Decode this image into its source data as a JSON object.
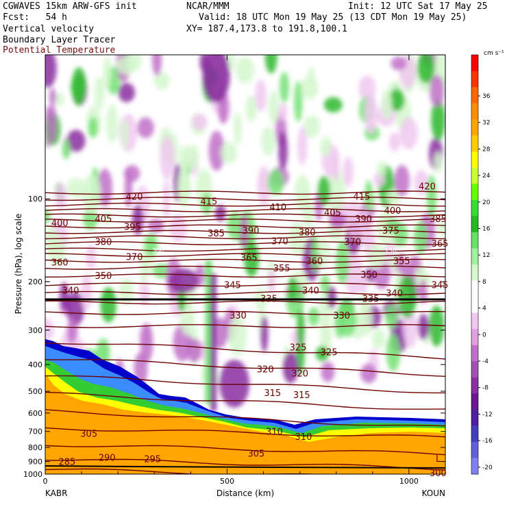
{
  "header": {
    "left_line1": "CGWAVES 15km ARW-GFS init",
    "left_line2": "Fcst:   54 h",
    "left_line3": "Vertical velocity",
    "left_line4": "Boundary Layer Tracer",
    "left_line5": "Potential Temperature",
    "center_line1": "NCAR/MMM",
    "right_line1": "Init: 12 UTC Sat 17 May 25",
    "right_line2": "Valid: 18 UTC Mon 19 May 25 (13 CDT Mon 19 May 25)",
    "right_line3": "XY= 187.4,173.8 to 191.8,100.1"
  },
  "colors": {
    "theta_contour": "#6b0000",
    "ascent_light": "#d4f7cc",
    "ascent_mid": "#74e074",
    "ascent_strong": "#2eb82e",
    "descent_light": "#f0c8f0",
    "descent_mid": "#c070c8",
    "descent_strong": "#8a2ea0",
    "terrain": "#000000"
  },
  "chart_data": {
    "type": "heatmap",
    "xlabel": "Distance (km)",
    "ylabel": "Pressure (hPa), log scale",
    "x_ticks": [
      "0",
      "500",
      "1000"
    ],
    "y_ticks": [
      "100",
      "200",
      "300",
      "400",
      "500",
      "600",
      "700",
      "800",
      "900",
      "1000"
    ],
    "x_endpoints": {
      "left": "KABR",
      "right": "KOUN"
    },
    "xlim": [
      0,
      1100
    ],
    "ylim": [
      1000,
      30
    ],
    "colorbar": {
      "units": "cm s⁻¹",
      "labels": [
        "36",
        "32",
        "28",
        "24",
        "20",
        "16",
        "12",
        "8",
        "4",
        "0",
        "-4",
        "-8",
        "-12",
        "-16",
        "-20"
      ],
      "colors": [
        "#ff0000",
        "#ff3300",
        "#ff6600",
        "#ff8c00",
        "#ffa500",
        "#ffcc00",
        "#ffff00",
        "#ccff33",
        "#66ff00",
        "#33dd33",
        "#22bb22",
        "#66e066",
        "#a0f0a0",
        "#d4f7cc",
        "#ffffff",
        "#ffffff",
        "#f0c8f0",
        "#e0a0e0",
        "#c070c8",
        "#a050b0",
        "#8a2ea0",
        "#6a1890",
        "#5020a0",
        "#4040c0",
        "#6060d8",
        "#8080f0"
      ]
    },
    "theta_contour_labels": [
      {
        "value": "420",
        "x": 245,
        "p": 98
      },
      {
        "value": "415",
        "x": 450,
        "p": 102
      },
      {
        "value": "410",
        "x": 640,
        "p": 107
      },
      {
        "value": "415",
        "x": 870,
        "p": 98
      },
      {
        "value": "420",
        "x": 1050,
        "p": 90
      },
      {
        "value": "405",
        "x": 160,
        "p": 118
      },
      {
        "value": "400",
        "x": 40,
        "p": 122
      },
      {
        "value": "395",
        "x": 240,
        "p": 126
      },
      {
        "value": "385",
        "x": 470,
        "p": 133
      },
      {
        "value": "390",
        "x": 565,
        "p": 130
      },
      {
        "value": "405",
        "x": 790,
        "p": 112
      },
      {
        "value": "400",
        "x": 955,
        "p": 110
      },
      {
        "value": "390",
        "x": 875,
        "p": 118
      },
      {
        "value": "385",
        "x": 1080,
        "p": 118
      },
      {
        "value": "380",
        "x": 720,
        "p": 132
      },
      {
        "value": "375",
        "x": 950,
        "p": 130
      },
      {
        "value": "370",
        "x": 645,
        "p": 142
      },
      {
        "value": "370",
        "x": 845,
        "p": 143
      },
      {
        "value": "365",
        "x": 1085,
        "p": 145
      },
      {
        "value": "380",
        "x": 160,
        "p": 143
      },
      {
        "value": "370",
        "x": 245,
        "p": 162
      },
      {
        "value": "360",
        "x": 40,
        "p": 170
      },
      {
        "value": "365",
        "x": 560,
        "p": 163
      },
      {
        "value": "360",
        "x": 740,
        "p": 168
      },
      {
        "value": "355",
        "x": 650,
        "p": 178
      },
      {
        "value": "355",
        "x": 980,
        "p": 168
      },
      {
        "value": "350",
        "x": 160,
        "p": 190
      },
      {
        "value": "350",
        "x": 890,
        "p": 188
      },
      {
        "value": "345",
        "x": 515,
        "p": 205
      },
      {
        "value": "345",
        "x": 1085,
        "p": 205
      },
      {
        "value": "340",
        "x": 70,
        "p": 215
      },
      {
        "value": "340",
        "x": 730,
        "p": 215
      },
      {
        "value": "340",
        "x": 960,
        "p": 220
      },
      {
        "value": "335",
        "x": 615,
        "p": 230
      },
      {
        "value": "335",
        "x": 895,
        "p": 230
      },
      {
        "value": "330",
        "x": 530,
        "p": 265
      },
      {
        "value": "330",
        "x": 815,
        "p": 265
      },
      {
        "value": "325",
        "x": 695,
        "p": 345
      },
      {
        "value": "325",
        "x": 780,
        "p": 360
      },
      {
        "value": "320",
        "x": 605,
        "p": 415
      },
      {
        "value": "320",
        "x": 700,
        "p": 430
      },
      {
        "value": "315",
        "x": 625,
        "p": 505
      },
      {
        "value": "315",
        "x": 705,
        "p": 515
      },
      {
        "value": "310",
        "x": 630,
        "p": 700
      },
      {
        "value": "310",
        "x": 710,
        "p": 730
      },
      {
        "value": "305",
        "x": 120,
        "p": 712
      },
      {
        "value": "305",
        "x": 580,
        "p": 840
      },
      {
        "value": "300",
        "x": 1080,
        "p": 990
      },
      {
        "value": "295",
        "x": 295,
        "p": 880
      },
      {
        "value": "290",
        "x": 170,
        "p": 870
      },
      {
        "value": "285",
        "x": 60,
        "p": 900
      }
    ],
    "tropopause_marker_labels": [
      {
        "value": "300",
        "x": 310,
        "p": 153
      },
      {
        "value": "150",
        "x": 950,
        "p": 153
      }
    ],
    "terrain_label": "L"
  }
}
